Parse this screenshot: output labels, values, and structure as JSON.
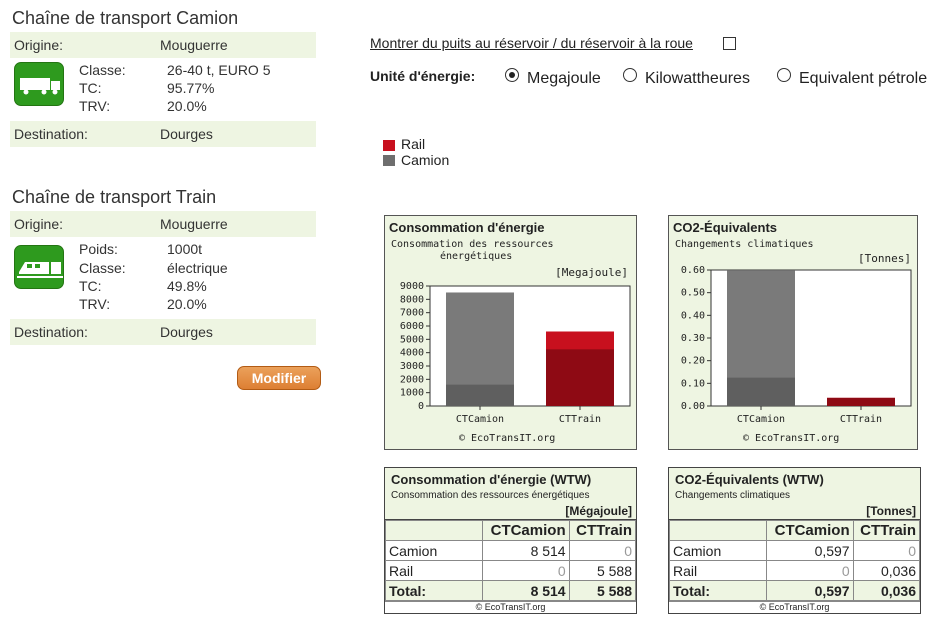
{
  "truck_chain": {
    "title": "Chaîne de transport Camion",
    "origin_label": "Origine:",
    "origin_value": "Mouguerre",
    "icon": "truck-icon",
    "details": [
      {
        "label": "Classe:",
        "value": "26-40 t, EURO 5"
      },
      {
        "label": "TC:",
        "value": "95.77%"
      },
      {
        "label": "TRV:",
        "value": "20.0%"
      }
    ],
    "destination_label": "Destination:",
    "destination_value": "Dourges"
  },
  "train_chain": {
    "title": "Chaîne de transport Train",
    "origin_label": "Origine:",
    "origin_value": "Mouguerre",
    "icon": "train-icon",
    "details": [
      {
        "label": "Poids:",
        "value": "1000t"
      },
      {
        "label": "Classe:",
        "value": "électrique"
      },
      {
        "label": "TC:",
        "value": "49.8%"
      },
      {
        "label": "TRV:",
        "value": "20.0%"
      }
    ],
    "destination_label": "Destination:",
    "destination_value": "Dourges"
  },
  "modify_button": "Modifier",
  "options": {
    "well_to_wheel_link": "Montrer du puits au réservoir / du réservoir à la roue",
    "well_to_wheel_checked": false,
    "unit_label": "Unité d'énergie:",
    "units": [
      {
        "label": "Megajoule",
        "selected": true
      },
      {
        "label": "Kilowattheures",
        "selected": false
      },
      {
        "label": "Equivalent pétrole",
        "selected": false
      }
    ]
  },
  "legend": [
    {
      "label": "Rail",
      "color": "#c8101e"
    },
    {
      "label": "Camion",
      "color": "#6e6e6e"
    }
  ],
  "colors": {
    "panel_bg": "#eef5e2",
    "rail": "#c8101e",
    "rail_dark": "#8e0a14",
    "truck": "#7a7a7a",
    "truck_dark": "#5f5f5f",
    "button": "#dd7f33",
    "icon_green": "#2e9a1e"
  },
  "chart_data": [
    {
      "type": "bar",
      "title": "Consommation d'énergie",
      "subtitle_line1": "Consommation des ressources",
      "subtitle_line2": "énergétiques",
      "unit": "[Megajoule]",
      "copyright": "© EcoTransIT.org",
      "categories": [
        "CTCamion",
        "CTTrain"
      ],
      "stacked": true,
      "series": [
        {
          "name": "Camion",
          "values": [
            8514,
            0
          ],
          "lower_part": [
            1600,
            0
          ]
        },
        {
          "name": "Rail",
          "values": [
            0,
            5588
          ],
          "lower_part": [
            0,
            4250
          ]
        }
      ],
      "yticks": [
        0,
        1000,
        2000,
        3000,
        4000,
        5000,
        6000,
        7000,
        8000,
        9000
      ],
      "ylim": [
        0,
        9000
      ],
      "grid": false,
      "legend": "none"
    },
    {
      "type": "bar",
      "title": "CO2-Équivalents",
      "subtitle_line1": "Changements climatiques",
      "subtitle_line2": "",
      "unit": "[Tonnes]",
      "copyright": "© EcoTransIT.org",
      "categories": [
        "CTCamion",
        "CTTrain"
      ],
      "stacked": true,
      "series": [
        {
          "name": "Camion",
          "values": [
            0.597,
            0
          ],
          "lower_part": [
            0.125,
            0
          ]
        },
        {
          "name": "Rail",
          "values": [
            0,
            0.036
          ],
          "lower_part": [
            0,
            0.036
          ]
        }
      ],
      "ytick_labels": [
        "0.00",
        "0.10",
        "0.20",
        "0.30",
        "0.40",
        "0.50",
        "0.60"
      ],
      "yticks": [
        0,
        0.1,
        0.2,
        0.3,
        0.4,
        0.5,
        0.6
      ],
      "ylim": [
        0,
        0.6
      ],
      "grid": false,
      "legend": "none"
    },
    {
      "type": "table",
      "title": "Consommation d'énergie (WTW)",
      "subtitle": "Consommation des ressources énergétiques",
      "unit": "[Mégajoule]",
      "columns": [
        "",
        "CTCamion",
        "CTTrain"
      ],
      "rows": [
        [
          "Camion",
          "8 514",
          "0"
        ],
        [
          "Rail",
          "0",
          "5 588"
        ]
      ],
      "total": [
        "Total:",
        "8 514",
        "5 588"
      ],
      "copyright": "© EcoTransIT.org"
    },
    {
      "type": "table",
      "title": "CO2-Équivalents (WTW)",
      "subtitle": "Changements climatiques",
      "unit": "[Tonnes]",
      "columns": [
        "",
        "CTCamion",
        "CTTrain"
      ],
      "rows": [
        [
          "Camion",
          "0,597",
          "0"
        ],
        [
          "Rail",
          "0",
          "0,036"
        ]
      ],
      "total": [
        "Total:",
        "0,597",
        "0,036"
      ],
      "copyright": "© EcoTransIT.org"
    }
  ]
}
